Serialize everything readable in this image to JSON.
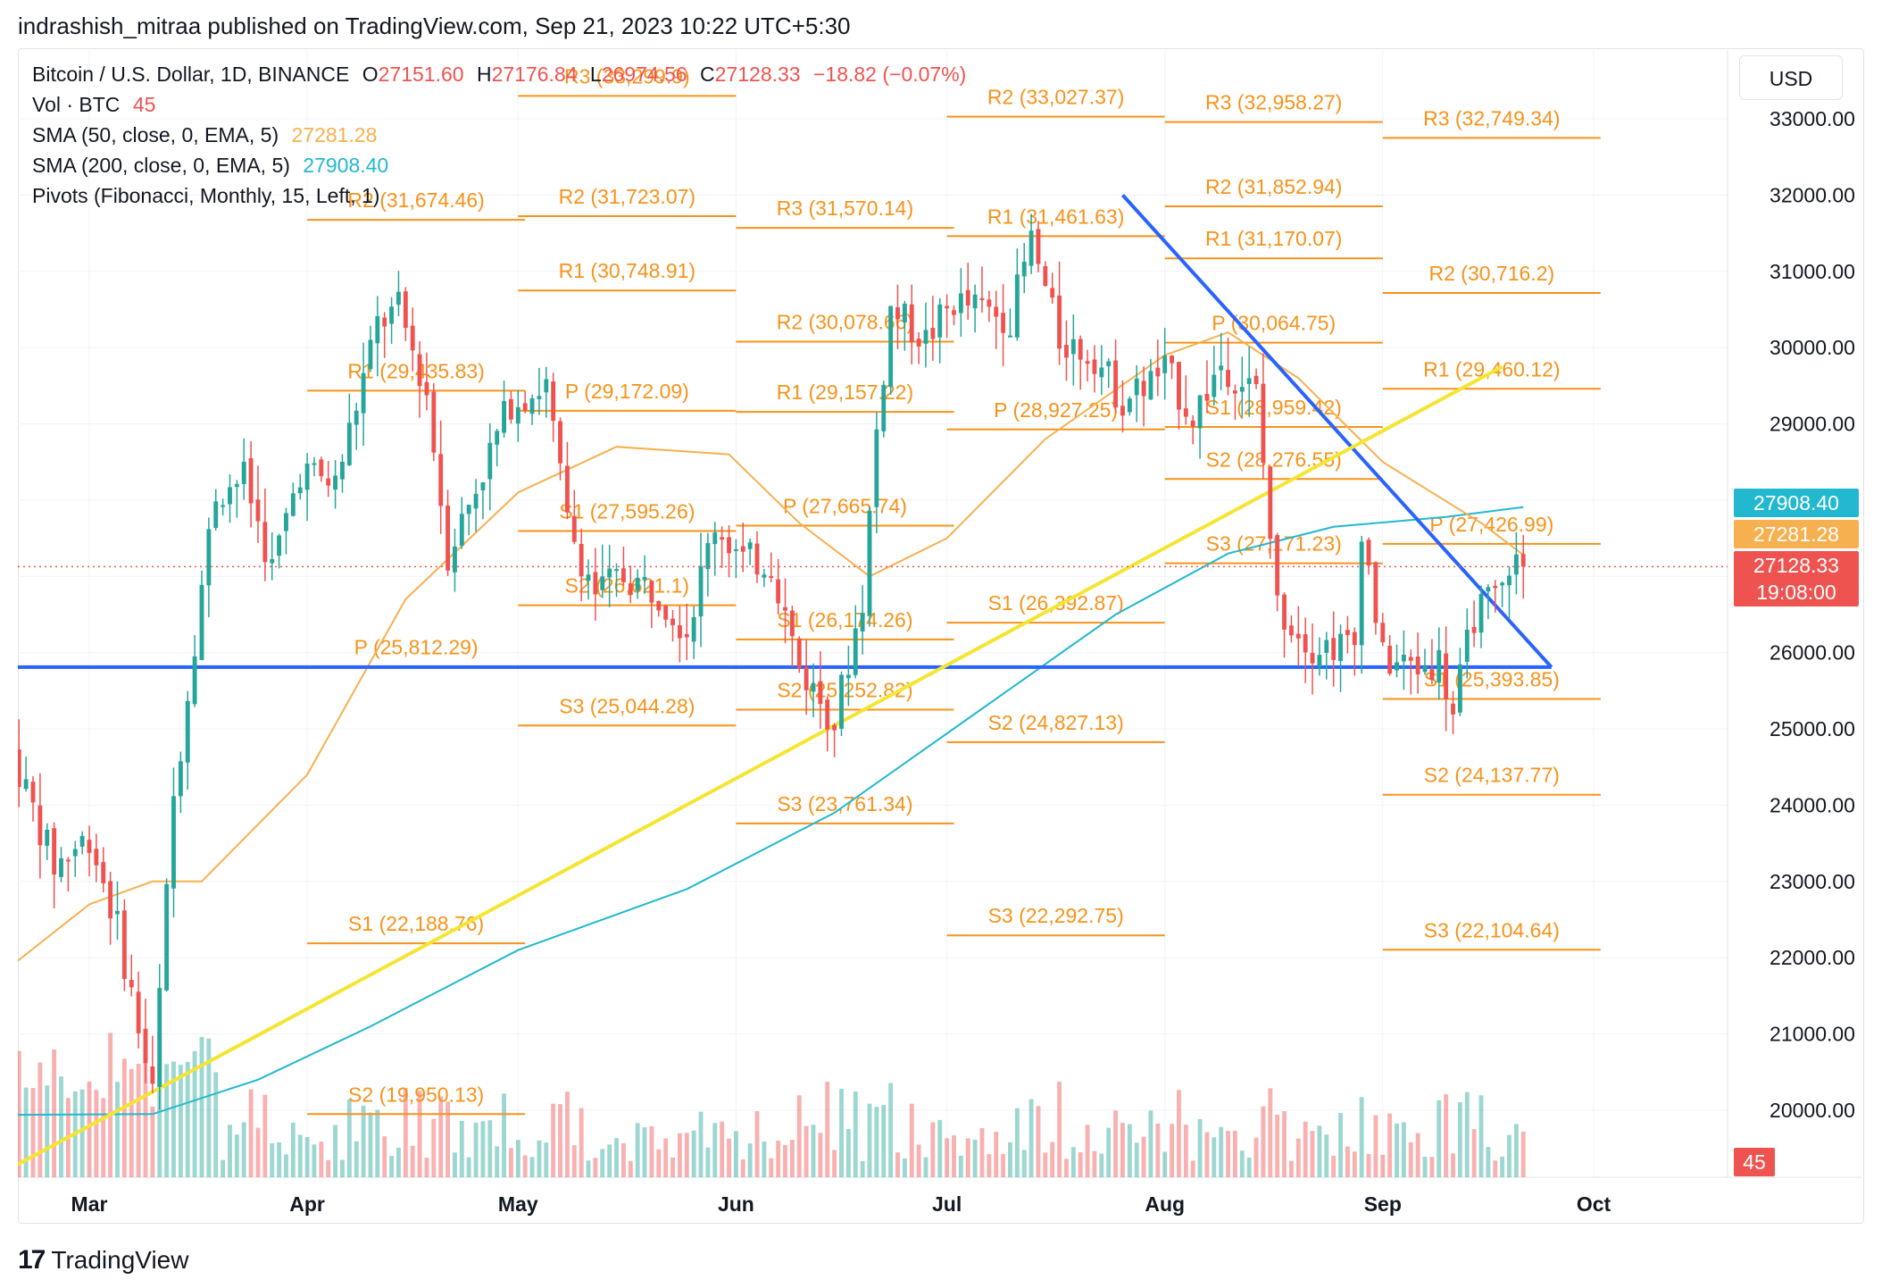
{
  "publisher_line": "indrashish_mitraa published on TradingView.com, Sep 21, 2023 10:22 UTC+5:30",
  "legend": {
    "symbol": "Bitcoin / U.S. Dollar, 1D, BINANCE",
    "open_label": "O",
    "open": "27151.60",
    "high_label": "H",
    "high": "27176.84",
    "low_label": "L",
    "low": "26974.56",
    "close_label": "C",
    "close": "27128.33",
    "change": "−18.82 (−0.07%)",
    "vol_label": "Vol · BTC",
    "vol": "45",
    "sma50_label": "SMA (50, close, 0, EMA, 5)",
    "sma50": "27281.28",
    "sma200_label": "SMA (200, close, 0, EMA, 5)",
    "sma200": "27908.40",
    "pivots_label": "Pivots (Fibonacci, Monthly, 15, Left, 1)"
  },
  "currency_button": "USD",
  "tags": {
    "sma200": "27908.40",
    "sma50": "27281.28",
    "last_price": "27128.33",
    "countdown": "19:08:00",
    "volume": "45"
  },
  "footer": {
    "logo_mark": "17",
    "logo_text": "TradingView"
  },
  "colors": {
    "up": "#26a69a",
    "down": "#ef5350",
    "pivot": "#f7931a",
    "sma50": "#f7b04f",
    "sma200": "#22b8cf",
    "trend_blue": "#2962ff",
    "trend_yellow": "#f5e532"
  },
  "chart_data": {
    "type": "candlestick",
    "instrument": "Bitcoin / U.S. Dollar",
    "timeframe": "1D",
    "y_axis": {
      "scale": "linear",
      "range": [
        19200,
        33700
      ],
      "ticks": [
        "33000.00",
        "32000.00",
        "31000.00",
        "30000.00",
        "29000.00",
        "28000.00",
        "27000.00",
        "26000.00",
        "25000.00",
        "24000.00",
        "23000.00",
        "22000.00",
        "21000.00",
        "20000.00"
      ]
    },
    "x_axis": {
      "ticks": [
        "Mar",
        "Apr",
        "May",
        "Jun",
        "Jul",
        "Aug",
        "Sep",
        "Oct"
      ]
    },
    "price_path": [
      [
        "2023-02-18",
        24700
      ],
      [
        "2023-02-24",
        23200
      ],
      [
        "2023-03-01",
        23600
      ],
      [
        "2023-03-05",
        22400
      ],
      [
        "2023-03-10",
        20200
      ],
      [
        "2023-03-13",
        24100
      ],
      [
        "2023-03-17",
        26900
      ],
      [
        "2023-03-19",
        28100
      ],
      [
        "2023-03-23",
        28300
      ],
      [
        "2023-03-27",
        27100
      ],
      [
        "2023-03-31",
        28400
      ],
      [
        "2023-04-05",
        28200
      ],
      [
        "2023-04-11",
        30300
      ],
      [
        "2023-04-14",
        30500
      ],
      [
        "2023-04-18",
        29400
      ],
      [
        "2023-04-21",
        27300
      ],
      [
        "2023-04-26",
        28400
      ],
      [
        "2023-04-30",
        29300
      ],
      [
        "2023-05-05",
        29500
      ],
      [
        "2023-05-08",
        27700
      ],
      [
        "2023-05-12",
        26800
      ],
      [
        "2023-05-16",
        27000
      ],
      [
        "2023-05-21",
        26800
      ],
      [
        "2023-05-25",
        26300
      ],
      [
        "2023-05-29",
        27700
      ],
      [
        "2023-06-02",
        27200
      ],
      [
        "2023-06-06",
        27200
      ],
      [
        "2023-06-10",
        25800
      ],
      [
        "2023-06-15",
        25100
      ],
      [
        "2023-06-19",
        26700
      ],
      [
        "2023-06-21",
        28900
      ],
      [
        "2023-06-23",
        30500
      ],
      [
        "2023-06-28",
        30100
      ],
      [
        "2023-07-02",
        30600
      ],
      [
        "2023-07-06",
        30500
      ],
      [
        "2023-07-10",
        30400
      ],
      [
        "2023-07-13",
        31400
      ],
      [
        "2023-07-17",
        30100
      ],
      [
        "2023-07-22",
        29900
      ],
      [
        "2023-07-26",
        29300
      ],
      [
        "2023-08-01",
        29700
      ],
      [
        "2023-08-05",
        29100
      ],
      [
        "2023-08-09",
        29800
      ],
      [
        "2023-08-14",
        29400
      ],
      [
        "2023-08-17",
        26600
      ],
      [
        "2023-08-22",
        26100
      ],
      [
        "2023-08-28",
        26100
      ],
      [
        "2023-08-29",
        27700
      ],
      [
        "2023-09-01",
        25900
      ],
      [
        "2023-09-06",
        25800
      ],
      [
        "2023-09-09",
        25900
      ],
      [
        "2023-09-11",
        25200
      ],
      [
        "2023-09-14",
        26500
      ],
      [
        "2023-09-18",
        26800
      ],
      [
        "2023-09-19",
        27200
      ],
      [
        "2023-09-21",
        27128.33
      ]
    ],
    "sma50_path": [
      [
        "2023-02-18",
        21900
      ],
      [
        "2023-03-01",
        22700
      ],
      [
        "2023-03-10",
        23000
      ],
      [
        "2023-03-17",
        23000
      ],
      [
        "2023-04-01",
        24400
      ],
      [
        "2023-04-15",
        26700
      ],
      [
        "2023-05-01",
        28100
      ],
      [
        "2023-05-15",
        28700
      ],
      [
        "2023-05-31",
        28600
      ],
      [
        "2023-06-10",
        27700
      ],
      [
        "2023-06-20",
        27000
      ],
      [
        "2023-07-01",
        27500
      ],
      [
        "2023-07-15",
        28800
      ],
      [
        "2023-08-01",
        29900
      ],
      [
        "2023-08-10",
        30200
      ],
      [
        "2023-08-20",
        29600
      ],
      [
        "2023-09-01",
        28500
      ],
      [
        "2023-09-15",
        27700
      ],
      [
        "2023-09-21",
        27281.28
      ]
    ],
    "sma200_path": [
      [
        "2023-02-18",
        19940
      ],
      [
        "2023-03-10",
        19950
      ],
      [
        "2023-03-25",
        20400
      ],
      [
        "2023-04-10",
        21100
      ],
      [
        "2023-05-01",
        22100
      ],
      [
        "2023-05-25",
        22900
      ],
      [
        "2023-06-15",
        23900
      ],
      [
        "2023-07-05",
        25200
      ],
      [
        "2023-07-25",
        26500
      ],
      [
        "2023-08-10",
        27300
      ],
      [
        "2023-08-25",
        27650
      ],
      [
        "2023-09-10",
        27780
      ],
      [
        "2023-09-21",
        27908.4
      ]
    ],
    "pivot_levels": [
      {
        "period": "2023-03",
        "labels": [
          {
            "name": "R2",
            "value": 31674.46,
            "label": "R2 (31,674.46)"
          },
          {
            "name": "R1",
            "value": 29435.83,
            "label": "R1 (29,435.83)"
          },
          {
            "name": "P",
            "value": 25812.29,
            "label": "P (25,812.29)"
          },
          {
            "name": "S1",
            "value": 22188.76,
            "label": "S1 (22,188.76)"
          },
          {
            "name": "S2",
            "value": 19950.13,
            "label": "S2 (19,950.13)"
          }
        ]
      },
      {
        "period": "2023-04",
        "labels": [
          {
            "name": "R3",
            "value": 33299.9,
            "label": "R3 (33,299.9)"
          },
          {
            "name": "R2",
            "value": 31723.07,
            "label": "R2 (31,723.07)"
          },
          {
            "name": "R1",
            "value": 30748.91,
            "label": "R1 (30,748.91)"
          },
          {
            "name": "P",
            "value": 29172.09,
            "label": "P (29,172.09)"
          },
          {
            "name": "S1",
            "value": 27595.26,
            "label": "S1 (27,595.26)"
          },
          {
            "name": "S2",
            "value": 26621.1,
            "label": "S2 (26,621.1)"
          },
          {
            "name": "S3",
            "value": 25044.28,
            "label": "S3 (25,044.28)"
          }
        ]
      },
      {
        "period": "2023-05",
        "labels": [
          {
            "name": "R3",
            "value": 31570.14,
            "label": "R3 (31,570.14)"
          },
          {
            "name": "R2",
            "value": 30078.66,
            "label": "R2 (30,078.66)"
          },
          {
            "name": "R1",
            "value": 29157.22,
            "label": "R1 (29,157.22)"
          },
          {
            "name": "P",
            "value": 27665.74,
            "label": "P (27,665.74)"
          },
          {
            "name": "S1",
            "value": 26174.26,
            "label": "S1 (26,174.26)"
          },
          {
            "name": "S2",
            "value": 25252.82,
            "label": "S2 (25,252.82)"
          },
          {
            "name": "S3",
            "value": 23761.34,
            "label": "S3 (23,761.34)"
          }
        ]
      },
      {
        "period": "2023-06",
        "labels": [
          {
            "name": "R2",
            "value": 33027.37,
            "label": "R2 (33,027.37)"
          },
          {
            "name": "R1",
            "value": 31461.63,
            "label": "R1 (31,461.63)"
          },
          {
            "name": "P",
            "value": 28927.25,
            "label": "P (28,927.25)"
          },
          {
            "name": "S1",
            "value": 26392.87,
            "label": "S1 (26,392.87)"
          },
          {
            "name": "S2",
            "value": 24827.13,
            "label": "S2 (24,827.13)"
          },
          {
            "name": "S3",
            "value": 22292.75,
            "label": "S3 (22,292.75)"
          }
        ]
      },
      {
        "period": "2023-07",
        "labels": [
          {
            "name": "R3",
            "value": 32958.27,
            "label": "R3 (32,958.27)"
          },
          {
            "name": "R2",
            "value": 31852.94,
            "label": "R2 (31,852.94)"
          },
          {
            "name": "R1",
            "value": 31170.07,
            "label": "R1 (31,170.07)"
          },
          {
            "name": "P",
            "value": 30064.75,
            "label": "P (30,064.75)"
          },
          {
            "name": "S1",
            "value": 28959.42,
            "label": "S1 (28,959.42)"
          },
          {
            "name": "S2",
            "value": 28276.55,
            "label": "S2 (28,276.55)"
          },
          {
            "name": "S3",
            "value": 27171.23,
            "label": "S3 (27,171.23)"
          }
        ]
      },
      {
        "period": "2023-08",
        "labels": [
          {
            "name": "R3",
            "value": 32749.34,
            "label": "R3 (32,749.34)"
          },
          {
            "name": "R2",
            "value": 30716.2,
            "label": "R2 (30,716.2)"
          },
          {
            "name": "R1",
            "value": 29460.12,
            "label": "R1 (29,460.12)"
          },
          {
            "name": "P",
            "value": 27426.99,
            "label": "P (27,426.99)"
          },
          {
            "name": "S1",
            "value": 25393.85,
            "label": "S1 (25,393.85)"
          },
          {
            "name": "S2",
            "value": 24137.77,
            "label": "S2 (24,137.77)"
          },
          {
            "name": "S3",
            "value": 22104.64,
            "label": "S3 (22,104.64)"
          }
        ]
      }
    ],
    "trendlines": [
      {
        "color": "blue",
        "points": [
          [
            "2023-02-18",
            25810
          ],
          [
            "2023-09-25",
            25810
          ]
        ]
      },
      {
        "color": "blue",
        "points": [
          [
            "2023-07-26",
            32000
          ],
          [
            "2023-09-25",
            25810
          ]
        ]
      },
      {
        "color": "yellow",
        "points": [
          [
            "2023-02-18",
            19250
          ],
          [
            "2023-09-18",
            29750
          ]
        ]
      }
    ],
    "last_price": 27128.33,
    "grid": true
  }
}
